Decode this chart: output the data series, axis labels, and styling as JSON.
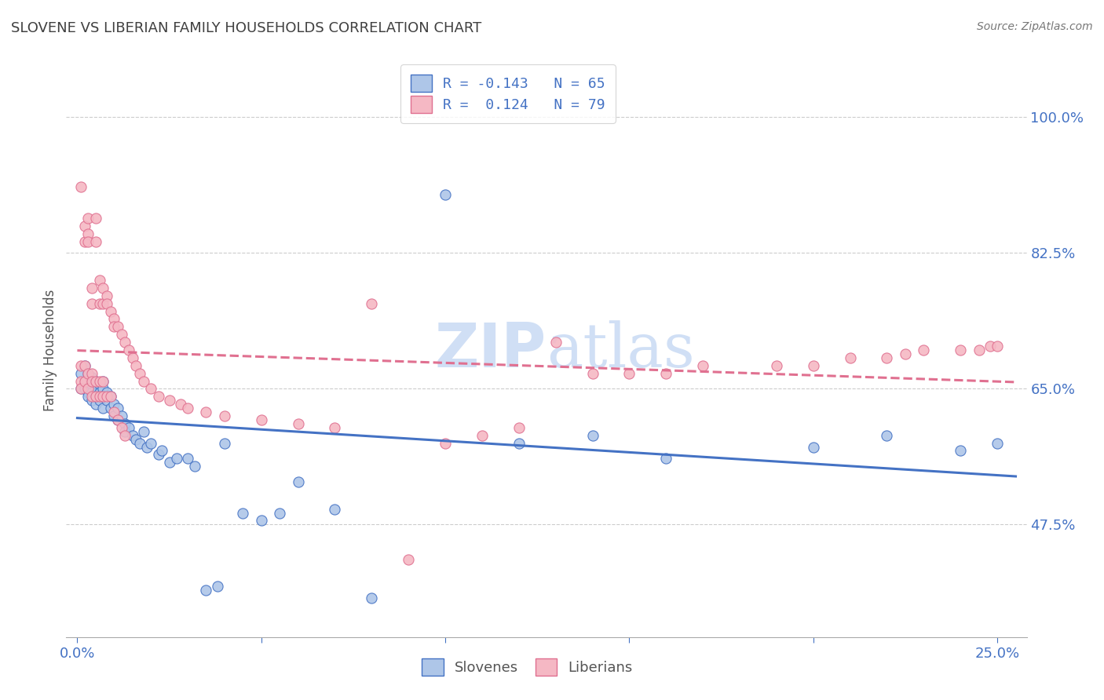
{
  "title": "SLOVENE VS LIBERIAN FAMILY HOUSEHOLDS CORRELATION CHART",
  "source": "Source: ZipAtlas.com",
  "ylabel": "Family Households",
  "ytick_labels": [
    "100.0%",
    "82.5%",
    "65.0%",
    "47.5%"
  ],
  "ytick_values": [
    1.0,
    0.825,
    0.65,
    0.475
  ],
  "slovene_color": "#aec6e8",
  "liberian_color": "#f5b8c4",
  "slovene_line_color": "#4472c4",
  "liberian_line_color": "#e07090",
  "background_color": "#ffffff",
  "title_color": "#404040",
  "axis_label_color": "#4472c4",
  "watermark_color": "#d0dff5",
  "slovene_x": [
    0.001,
    0.001,
    0.002,
    0.002,
    0.002,
    0.003,
    0.003,
    0.003,
    0.003,
    0.004,
    0.004,
    0.004,
    0.004,
    0.005,
    0.005,
    0.005,
    0.005,
    0.006,
    0.006,
    0.006,
    0.007,
    0.007,
    0.007,
    0.007,
    0.008,
    0.008,
    0.009,
    0.009,
    0.01,
    0.01,
    0.011,
    0.011,
    0.012,
    0.013,
    0.013,
    0.014,
    0.015,
    0.016,
    0.017,
    0.018,
    0.019,
    0.02,
    0.022,
    0.023,
    0.025,
    0.027,
    0.03,
    0.032,
    0.035,
    0.038,
    0.04,
    0.045,
    0.05,
    0.055,
    0.06,
    0.07,
    0.08,
    0.1,
    0.12,
    0.14,
    0.16,
    0.2,
    0.22,
    0.24,
    0.25
  ],
  "slovene_y": [
    0.67,
    0.65,
    0.68,
    0.66,
    0.65,
    0.67,
    0.66,
    0.645,
    0.64,
    0.665,
    0.655,
    0.645,
    0.635,
    0.66,
    0.65,
    0.64,
    0.63,
    0.655,
    0.645,
    0.635,
    0.66,
    0.65,
    0.64,
    0.625,
    0.645,
    0.635,
    0.64,
    0.625,
    0.63,
    0.615,
    0.625,
    0.61,
    0.615,
    0.605,
    0.595,
    0.6,
    0.59,
    0.585,
    0.58,
    0.595,
    0.575,
    0.58,
    0.565,
    0.57,
    0.555,
    0.56,
    0.56,
    0.55,
    0.39,
    0.395,
    0.58,
    0.49,
    0.48,
    0.49,
    0.53,
    0.495,
    0.38,
    0.9,
    0.58,
    0.59,
    0.56,
    0.575,
    0.59,
    0.57,
    0.58
  ],
  "liberian_x": [
    0.001,
    0.001,
    0.001,
    0.001,
    0.002,
    0.002,
    0.002,
    0.002,
    0.003,
    0.003,
    0.003,
    0.003,
    0.003,
    0.004,
    0.004,
    0.004,
    0.004,
    0.004,
    0.005,
    0.005,
    0.005,
    0.005,
    0.006,
    0.006,
    0.006,
    0.006,
    0.007,
    0.007,
    0.007,
    0.007,
    0.008,
    0.008,
    0.008,
    0.009,
    0.009,
    0.01,
    0.01,
    0.01,
    0.011,
    0.011,
    0.012,
    0.012,
    0.013,
    0.013,
    0.014,
    0.015,
    0.016,
    0.017,
    0.018,
    0.02,
    0.022,
    0.025,
    0.028,
    0.03,
    0.035,
    0.04,
    0.05,
    0.06,
    0.07,
    0.08,
    0.09,
    0.1,
    0.11,
    0.12,
    0.13,
    0.14,
    0.15,
    0.16,
    0.17,
    0.19,
    0.2,
    0.21,
    0.22,
    0.225,
    0.23,
    0.24,
    0.245,
    0.248,
    0.25
  ],
  "liberian_y": [
    0.68,
    0.91,
    0.66,
    0.65,
    0.86,
    0.84,
    0.68,
    0.66,
    0.87,
    0.85,
    0.84,
    0.67,
    0.65,
    0.78,
    0.76,
    0.67,
    0.66,
    0.64,
    0.87,
    0.84,
    0.66,
    0.64,
    0.79,
    0.76,
    0.66,
    0.64,
    0.78,
    0.76,
    0.66,
    0.64,
    0.77,
    0.76,
    0.64,
    0.75,
    0.64,
    0.74,
    0.73,
    0.62,
    0.73,
    0.61,
    0.72,
    0.6,
    0.71,
    0.59,
    0.7,
    0.69,
    0.68,
    0.67,
    0.66,
    0.65,
    0.64,
    0.635,
    0.63,
    0.625,
    0.62,
    0.615,
    0.61,
    0.605,
    0.6,
    0.76,
    0.43,
    0.58,
    0.59,
    0.6,
    0.71,
    0.67,
    0.67,
    0.67,
    0.68,
    0.68,
    0.68,
    0.69,
    0.69,
    0.695,
    0.7,
    0.7,
    0.7,
    0.705,
    0.705
  ]
}
